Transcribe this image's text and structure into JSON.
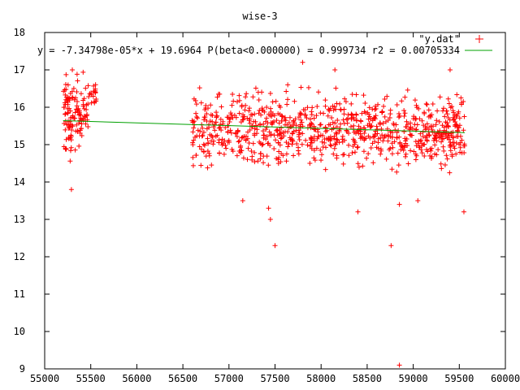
{
  "chart_data": {
    "type": "scatter",
    "title": "wise-3",
    "xlim": [
      55000,
      60000
    ],
    "ylim": [
      9,
      18
    ],
    "x_ticks": [
      "55000",
      "55500",
      "56000",
      "56500",
      "57000",
      "57500",
      "58000",
      "58500",
      "59000",
      "59500",
      "60000"
    ],
    "y_ticks": [
      "9",
      "10",
      "11",
      "12",
      "13",
      "14",
      "15",
      "16",
      "17",
      "18"
    ],
    "grid": false,
    "legend_position": "top-right",
    "series": [
      {
        "name": "\"y.dat\"",
        "kind": "points",
        "color": "#ff0000",
        "marker": "plus",
        "clusters": [
          {
            "x_range": [
              55200,
              55300
            ],
            "y_mean": 15.7,
            "y_spread": 0.85,
            "count": 60
          },
          {
            "x_range": [
              55300,
              55420
            ],
            "y_mean": 15.9,
            "y_spread": 0.75,
            "count": 45
          },
          {
            "x_range": [
              55420,
              55470
            ],
            "y_mean": 15.8,
            "y_spread": 0.5,
            "count": 15
          },
          {
            "x_range": [
              55470,
              55560
            ],
            "y_mean": 16.3,
            "y_spread": 0.3,
            "count": 20
          },
          {
            "x_range": [
              56600,
              59560
            ],
            "y_mean": 15.4,
            "y_spread": 0.75,
            "count": 900
          }
        ],
        "outliers": [
          [
            55290,
            13.8
          ],
          [
            55300,
            17.0
          ],
          [
            57500,
            12.3
          ],
          [
            58850,
            9.1
          ],
          [
            58760,
            12.3
          ],
          [
            57450,
            13.0
          ],
          [
            57430,
            13.3
          ],
          [
            58400,
            13.2
          ],
          [
            59550,
            13.2
          ],
          [
            57800,
            17.2
          ],
          [
            58150,
            17.0
          ],
          [
            59400,
            17.0
          ],
          [
            57150,
            13.5
          ],
          [
            58850,
            13.4
          ],
          [
            59050,
            13.5
          ]
        ]
      },
      {
        "name": "y = -7.34798e-05*x + 19.6964 P(beta<0.000000) = 0.999734 r2 = 0.00705334",
        "kind": "line",
        "color": "#00a000",
        "slope": -7.34798e-05,
        "intercept": 19.6964,
        "x_range": [
          55200,
          59560
        ]
      }
    ]
  }
}
